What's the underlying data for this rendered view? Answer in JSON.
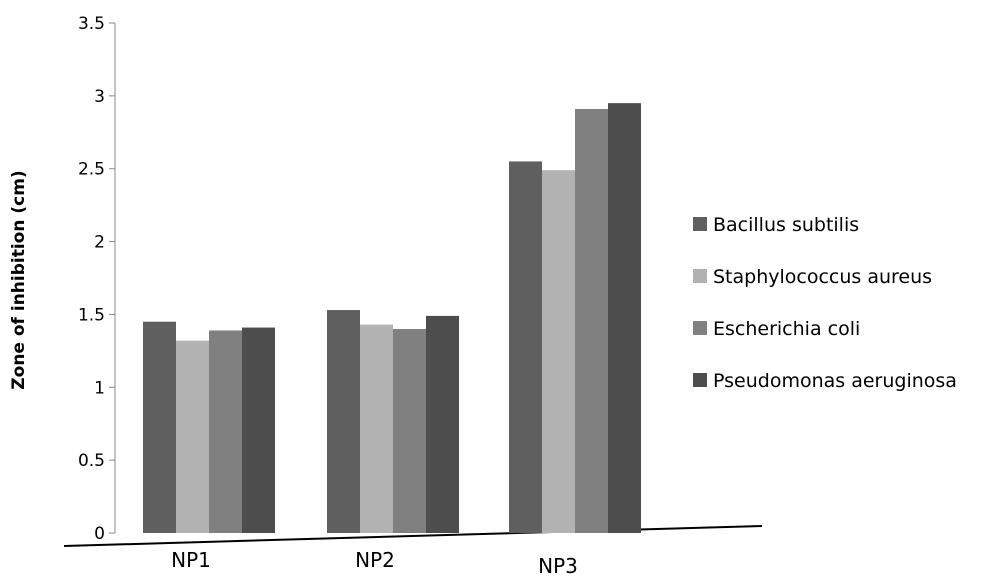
{
  "chart_data": {
    "type": "bar",
    "categories": [
      "NP1",
      "NP2",
      "NP3"
    ],
    "series": [
      {
        "name": "Bacillus subtilis",
        "color": "#5f5f5f",
        "values": [
          1.45,
          1.53,
          2.55
        ]
      },
      {
        "name": "Staphylococcus aureus",
        "color": "#b2b2b2",
        "values": [
          1.32,
          1.43,
          2.49
        ]
      },
      {
        "name": "Escherichia coli",
        "color": "#808080",
        "values": [
          1.39,
          1.4,
          2.91
        ]
      },
      {
        "name": "Pseudomonas aeruginosa",
        "color": "#4d4d4d",
        "values": [
          1.41,
          1.49,
          2.95
        ]
      }
    ],
    "ylabel": "Zone of inhibition (cm)",
    "xlabel": "",
    "ylim": [
      0,
      3.5
    ],
    "yticks": [
      "0",
      "0.5",
      "1",
      "1.5",
      "2",
      "2.5",
      "3",
      "3.5"
    ],
    "grid": false,
    "legend_position": "right"
  }
}
